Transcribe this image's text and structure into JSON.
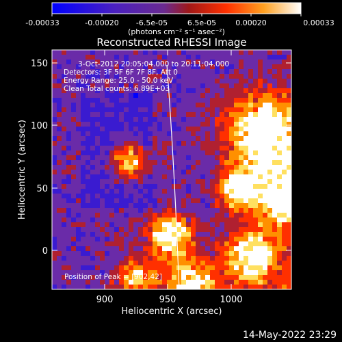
{
  "colorbar": {
    "ticks": [
      "-0.00033",
      "-0.00020",
      "-6.5e-05",
      "6.5e-05",
      "0.00020",
      "0.00033"
    ],
    "units_label": "(photons cm⁻² s⁻¹ asec⁻²)",
    "scale_min": -0.00033,
    "scale_max": 0.00033,
    "colormap": [
      "#0000ff",
      "#3a1bd0",
      "#6a2ba8",
      "#b02030",
      "#ff3000",
      "#ff9000",
      "#ffe060",
      "#ffffff"
    ]
  },
  "image": {
    "title": "Reconstructed RHESSI Image",
    "time_range": "3-Oct-2012 20:05:04.000 to 20:11:04.000",
    "detectors": "Detectors: 3F 5F 6F 7F 8F, Att 0",
    "energy_range": "Energy Range: 25.0 - 50.0 keV",
    "clean_info": "Clean     Total counts: 6.89E+03",
    "peak_position": "Position of Peak = [902,42]",
    "x_label": "Heliocentric X (arcsec)",
    "y_label": "Heliocentric Y (arcsec)",
    "x_ticks": [
      "900",
      "950",
      "1000"
    ],
    "y_ticks": [
      "150",
      "100",
      "50",
      "0"
    ],
    "x_range": [
      862,
      1047
    ],
    "y_range": [
      -32,
      160
    ]
  },
  "footer": {
    "date": "14-May-2022 23:29"
  }
}
